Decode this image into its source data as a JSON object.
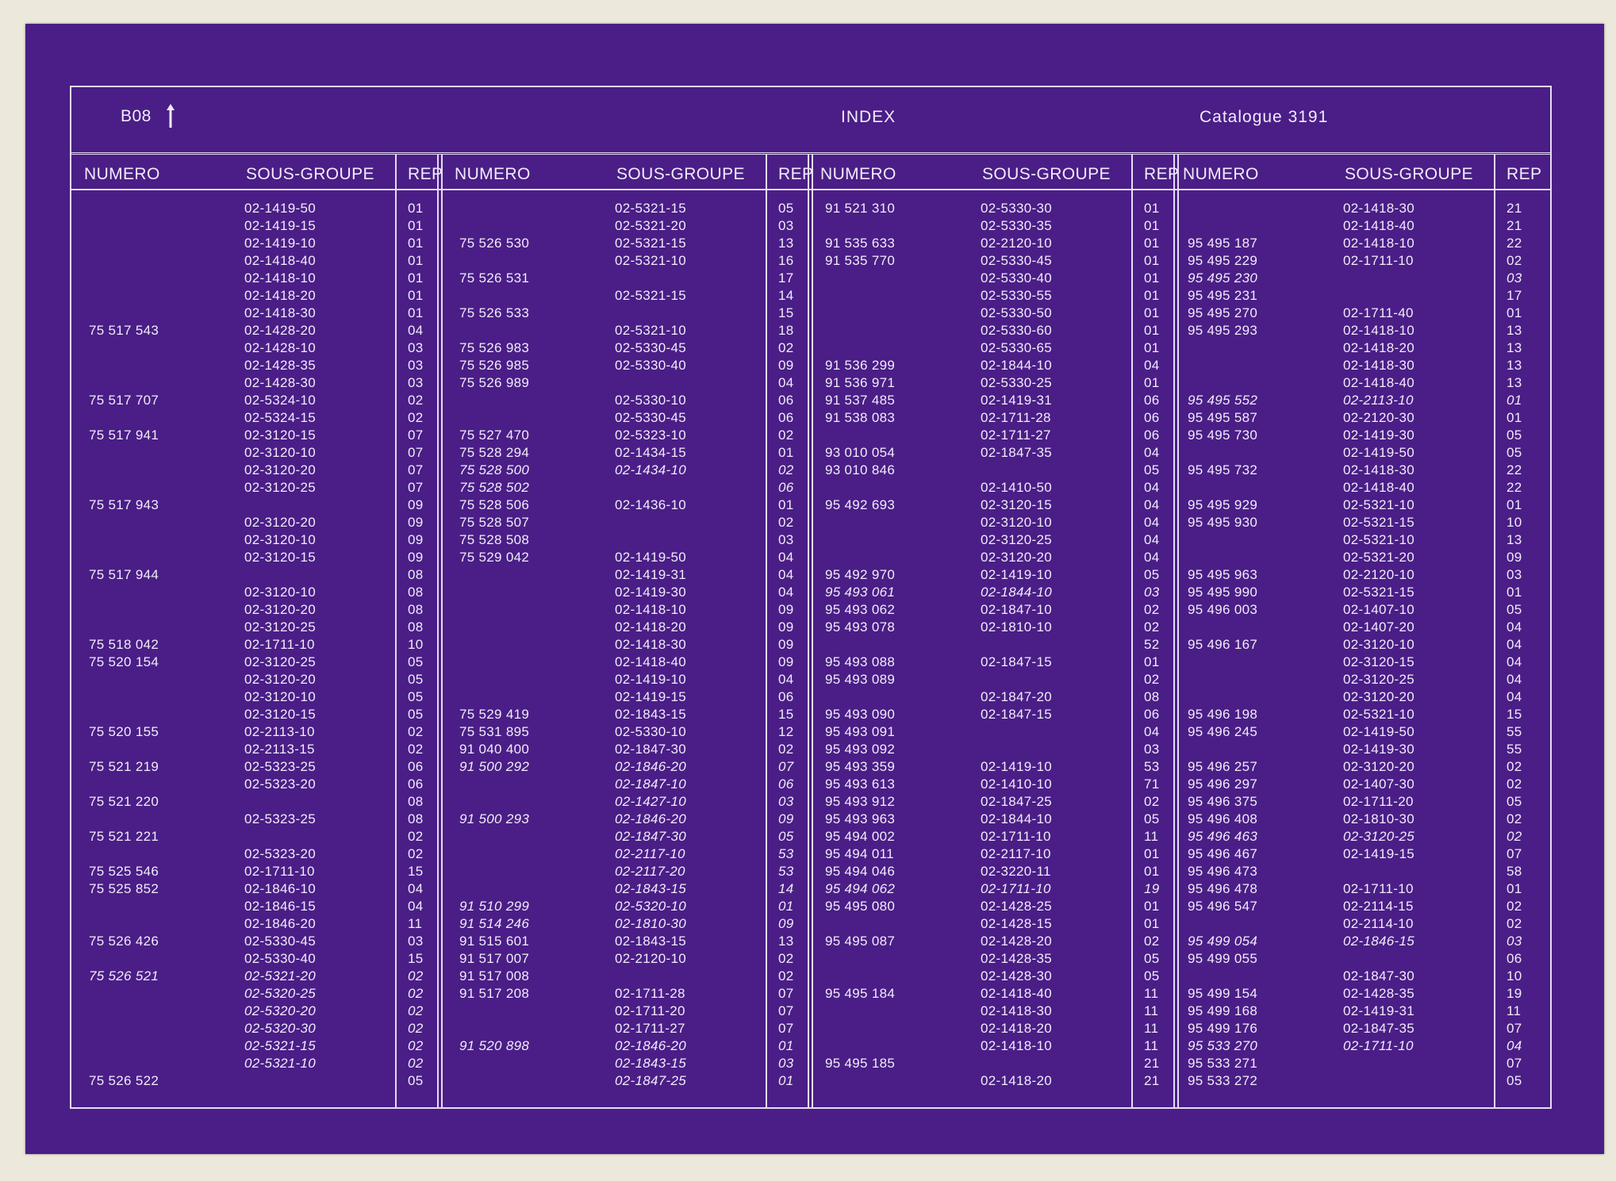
{
  "header": {
    "ref": "B08",
    "title": "INDEX",
    "catalogue": "Catalogue  3191"
  },
  "columns": {
    "numero": "NUMERO",
    "sous_groupe": "SOUS-GROUPE",
    "rep": "REP"
  },
  "table": [
    [
      [
        "",
        "02-1419-50",
        "01"
      ],
      [
        "",
        "02-1419-15",
        "01"
      ],
      [
        "",
        "02-1419-10",
        "01"
      ],
      [
        "",
        "02-1418-40",
        "01"
      ],
      [
        "",
        "02-1418-10",
        "01"
      ],
      [
        "",
        "02-1418-20",
        "01"
      ],
      [
        "",
        "02-1418-30",
        "01"
      ],
      [
        "75 517 543",
        "02-1428-20",
        "04"
      ],
      [
        "",
        "02-1428-10",
        "03"
      ],
      [
        "",
        "02-1428-35",
        "03"
      ],
      [
        "",
        "02-1428-30",
        "03"
      ],
      [
        "75 517 707",
        "02-5324-10",
        "02"
      ],
      [
        "",
        "02-5324-15",
        "02"
      ],
      [
        "75 517 941",
        "02-3120-15",
        "07"
      ],
      [
        "",
        "02-3120-10",
        "07"
      ],
      [
        "",
        "02-3120-20",
        "07"
      ],
      [
        "",
        "02-3120-25",
        "07"
      ],
      [
        "75 517 943",
        "",
        "09"
      ],
      [
        "",
        "02-3120-20",
        "09"
      ],
      [
        "",
        "02-3120-10",
        "09"
      ],
      [
        "",
        "02-3120-15",
        "09"
      ],
      [
        "75 517 944",
        "",
        "08"
      ],
      [
        "",
        "02-3120-10",
        "08"
      ],
      [
        "",
        "02-3120-20",
        "08"
      ],
      [
        "",
        "02-3120-25",
        "08"
      ],
      [
        "75 518 042",
        "02-1711-10",
        "10"
      ],
      [
        "75 520 154",
        "02-3120-25",
        "05"
      ],
      [
        "",
        "02-3120-20",
        "05"
      ],
      [
        "",
        "02-3120-10",
        "05"
      ],
      [
        "",
        "02-3120-15",
        "05"
      ],
      [
        "75 520 155",
        "02-2113-10",
        "02"
      ],
      [
        "",
        "02-2113-15",
        "02"
      ],
      [
        "75 521 219",
        "02-5323-25",
        "06"
      ],
      [
        "",
        "02-5323-20",
        "06"
      ],
      [
        "75 521 220",
        "",
        "08"
      ],
      [
        "",
        "02-5323-25",
        "08"
      ],
      [
        "75 521 221",
        "",
        "02"
      ],
      [
        "",
        "02-5323-20",
        "02"
      ],
      [
        "75 525 546",
        "02-1711-10",
        "15"
      ],
      [
        "75 525 852",
        "02-1846-10",
        "04"
      ],
      [
        "",
        "02-1846-15",
        "04"
      ],
      [
        "",
        "02-1846-20",
        "11"
      ],
      [
        "75 526 426",
        "02-5330-45",
        "03"
      ],
      [
        "",
        "02-5330-40",
        "15"
      ],
      [
        "75 526 521",
        "02-5321-20",
        "02",
        "i"
      ],
      [
        "",
        "02-5320-25",
        "02",
        "i"
      ],
      [
        "",
        "02-5320-20",
        "02",
        "i"
      ],
      [
        "",
        "02-5320-30",
        "02",
        "i"
      ],
      [
        "",
        "02-5321-15",
        "02",
        "i"
      ],
      [
        "",
        "02-5321-10",
        "02",
        "i"
      ],
      [
        "75 526 522",
        "",
        "05"
      ]
    ],
    [
      [
        "",
        "02-5321-15",
        "05"
      ],
      [
        "",
        "02-5321-20",
        "03"
      ],
      [
        "75 526 530",
        "02-5321-15",
        "13"
      ],
      [
        "",
        "02-5321-10",
        "16"
      ],
      [
        "75 526 531",
        "",
        "17"
      ],
      [
        "",
        "02-5321-15",
        "14"
      ],
      [
        "75 526 533",
        "",
        "15"
      ],
      [
        "",
        "02-5321-10",
        "18"
      ],
      [
        "75 526 983",
        "02-5330-45",
        "02"
      ],
      [
        "75 526 985",
        "02-5330-40",
        "09"
      ],
      [
        "75 526 989",
        "",
        "04"
      ],
      [
        "",
        "02-5330-10",
        "06"
      ],
      [
        "",
        "02-5330-45",
        "06"
      ],
      [
        "75 527 470",
        "02-5323-10",
        "02"
      ],
      [
        "75 528 294",
        "02-1434-15",
        "01"
      ],
      [
        "75 528 500",
        "02-1434-10",
        "02",
        "i"
      ],
      [
        "75 528 502",
        "",
        "06",
        "i"
      ],
      [
        "75 528 506",
        "02-1436-10",
        "01"
      ],
      [
        "75 528 507",
        "",
        "02"
      ],
      [
        "75 528 508",
        "",
        "03"
      ],
      [
        "75 529 042",
        "02-1419-50",
        "04"
      ],
      [
        "",
        "02-1419-31",
        "04"
      ],
      [
        "",
        "02-1419-30",
        "04"
      ],
      [
        "",
        "02-1418-10",
        "09"
      ],
      [
        "",
        "02-1418-20",
        "09"
      ],
      [
        "",
        "02-1418-30",
        "09"
      ],
      [
        "",
        "02-1418-40",
        "09"
      ],
      [
        "",
        "02-1419-10",
        "04"
      ],
      [
        "",
        "02-1419-15",
        "06"
      ],
      [
        "75 529 419",
        "02-1843-15",
        "15"
      ],
      [
        "75 531 895",
        "02-5330-10",
        "12"
      ],
      [
        "91 040 400",
        "02-1847-30",
        "02"
      ],
      [
        "91 500 292",
        "02-1846-20",
        "07",
        "i"
      ],
      [
        "",
        "02-1847-10",
        "06",
        "i"
      ],
      [
        "",
        "02-1427-10",
        "03",
        "i"
      ],
      [
        "91 500 293",
        "02-1846-20",
        "09",
        "i"
      ],
      [
        "",
        "02-1847-30",
        "05",
        "i"
      ],
      [
        "",
        "02-2117-10",
        "53",
        "i"
      ],
      [
        "",
        "02-2117-20",
        "53",
        "i"
      ],
      [
        "",
        "02-1843-15",
        "14",
        "i"
      ],
      [
        "91 510 299",
        "02-5320-10",
        "01",
        "i"
      ],
      [
        "91 514 246",
        "02-1810-30",
        "09",
        "i"
      ],
      [
        "91 515 601",
        "02-1843-15",
        "13"
      ],
      [
        "91 517 007",
        "02-2120-10",
        "02"
      ],
      [
        "91 517 008",
        "",
        "02"
      ],
      [
        "91 517 208",
        "02-1711-28",
        "07"
      ],
      [
        "",
        "02-1711-20",
        "07"
      ],
      [
        "",
        "02-1711-27",
        "07"
      ],
      [
        "91 520 898",
        "02-1846-20",
        "01",
        "i"
      ],
      [
        "",
        "02-1843-15",
        "03",
        "i"
      ],
      [
        "",
        "02-1847-25",
        "01",
        "i"
      ]
    ],
    [
      [
        "91 521 310",
        "02-5330-30",
        "01"
      ],
      [
        "",
        "02-5330-35",
        "01"
      ],
      [
        "91 535 633",
        "02-2120-10",
        "01"
      ],
      [
        "91 535 770",
        "02-5330-45",
        "01"
      ],
      [
        "",
        "02-5330-40",
        "01"
      ],
      [
        "",
        "02-5330-55",
        "01"
      ],
      [
        "",
        "02-5330-50",
        "01"
      ],
      [
        "",
        "02-5330-60",
        "01"
      ],
      [
        "",
        "02-5330-65",
        "01"
      ],
      [
        "91 536 299",
        "02-1844-10",
        "04"
      ],
      [
        "91 536 971",
        "02-5330-25",
        "01"
      ],
      [
        "91 537 485",
        "02-1419-31",
        "06"
      ],
      [
        "91 538 083",
        "02-1711-28",
        "06"
      ],
      [
        "",
        "02-1711-27",
        "06"
      ],
      [
        "93 010 054",
        "02-1847-35",
        "04"
      ],
      [
        "93 010 846",
        "",
        "05"
      ],
      [
        "",
        "02-1410-50",
        "04"
      ],
      [
        "95 492 693",
        "02-3120-15",
        "04"
      ],
      [
        "",
        "02-3120-10",
        "04"
      ],
      [
        "",
        "02-3120-25",
        "04"
      ],
      [
        "",
        "02-3120-20",
        "04"
      ],
      [
        "95 492 970",
        "02-1419-10",
        "05"
      ],
      [
        "95 493 061",
        "02-1844-10",
        "03",
        "i"
      ],
      [
        "95 493 062",
        "02-1847-10",
        "02"
      ],
      [
        "95 493 078",
        "02-1810-10",
        "02"
      ],
      [
        "",
        "",
        "52"
      ],
      [
        "95 493 088",
        "02-1847-15",
        "01"
      ],
      [
        "95 493 089",
        "",
        "02"
      ],
      [
        "",
        "02-1847-20",
        "08"
      ],
      [
        "95 493 090",
        "02-1847-15",
        "06"
      ],
      [
        "95 493 091",
        "",
        "04"
      ],
      [
        "95 493 092",
        "",
        "03"
      ],
      [
        "95 493 359",
        "02-1419-10",
        "53"
      ],
      [
        "95 493 613",
        "02-1410-10",
        "71"
      ],
      [
        "95 493 912",
        "02-1847-25",
        "02"
      ],
      [
        "95 493 963",
        "02-1844-10",
        "05"
      ],
      [
        "95 494 002",
        "02-1711-10",
        "11"
      ],
      [
        "95 494 011",
        "02-2117-10",
        "01"
      ],
      [
        "95 494 046",
        "02-3220-11",
        "01"
      ],
      [
        "95 494 062",
        "02-1711-10",
        "19",
        "i"
      ],
      [
        "95 495 080",
        "02-1428-25",
        "01"
      ],
      [
        "",
        "02-1428-15",
        "01"
      ],
      [
        "95 495 087",
        "02-1428-20",
        "02"
      ],
      [
        "",
        "02-1428-35",
        "05"
      ],
      [
        "",
        "02-1428-30",
        "05"
      ],
      [
        "95 495 184",
        "02-1418-40",
        "11"
      ],
      [
        "",
        "02-1418-30",
        "11"
      ],
      [
        "",
        "02-1418-20",
        "11"
      ],
      [
        "",
        "02-1418-10",
        "11"
      ],
      [
        "95 495 185",
        "",
        "21"
      ],
      [
        "",
        "02-1418-20",
        "21"
      ]
    ],
    [
      [
        "",
        "02-1418-30",
        "21"
      ],
      [
        "",
        "02-1418-40",
        "21"
      ],
      [
        "95 495 187",
        "02-1418-10",
        "22"
      ],
      [
        "95 495 229",
        "02-1711-10",
        "02"
      ],
      [
        "95 495 230",
        "",
        "03",
        "i"
      ],
      [
        "95 495 231",
        "",
        "17"
      ],
      [
        "95 495 270",
        "02-1711-40",
        "01"
      ],
      [
        "95 495 293",
        "02-1418-10",
        "13"
      ],
      [
        "",
        "02-1418-20",
        "13"
      ],
      [
        "",
        "02-1418-30",
        "13"
      ],
      [
        "",
        "02-1418-40",
        "13"
      ],
      [
        "95 495 552",
        "02-2113-10",
        "01",
        "i"
      ],
      [
        "95 495 587",
        "02-2120-30",
        "01"
      ],
      [
        "95 495 730",
        "02-1419-30",
        "05"
      ],
      [
        "",
        "02-1419-50",
        "05"
      ],
      [
        "95 495 732",
        "02-1418-30",
        "22"
      ],
      [
        "",
        "02-1418-40",
        "22"
      ],
      [
        "95 495 929",
        "02-5321-10",
        "01"
      ],
      [
        "95 495 930",
        "02-5321-15",
        "10"
      ],
      [
        "",
        "02-5321-10",
        "13"
      ],
      [
        "",
        "02-5321-20",
        "09"
      ],
      [
        "95 495 963",
        "02-2120-10",
        "03"
      ],
      [
        "95 495 990",
        "02-5321-15",
        "01"
      ],
      [
        "95 496 003",
        "02-1407-10",
        "05"
      ],
      [
        "",
        "02-1407-20",
        "04"
      ],
      [
        "95 496 167",
        "02-3120-10",
        "04"
      ],
      [
        "",
        "02-3120-15",
        "04"
      ],
      [
        "",
        "02-3120-25",
        "04"
      ],
      [
        "",
        "02-3120-20",
        "04"
      ],
      [
        "95 496 198",
        "02-5321-10",
        "15"
      ],
      [
        "95 496 245",
        "02-1419-50",
        "55"
      ],
      [
        "",
        "02-1419-30",
        "55"
      ],
      [
        "95 496 257",
        "02-3120-20",
        "02"
      ],
      [
        "95 496 297",
        "02-1407-30",
        "02"
      ],
      [
        "95 496 375",
        "02-1711-20",
        "05"
      ],
      [
        "95 496 408",
        "02-1810-30",
        "02"
      ],
      [
        "95 496 463",
        "02-3120-25",
        "02",
        "i"
      ],
      [
        "95 496 467",
        "02-1419-15",
        "07"
      ],
      [
        "95 496 473",
        "",
        "58"
      ],
      [
        "95 496 478",
        "02-1711-10",
        "01"
      ],
      [
        "95 496 547",
        "02-2114-15",
        "02"
      ],
      [
        "",
        "02-2114-10",
        "02"
      ],
      [
        "95 499 054",
        "02-1846-15",
        "03",
        "i"
      ],
      [
        "95 499 055",
        "",
        "06"
      ],
      [
        "",
        "02-1847-30",
        "10"
      ],
      [
        "95 499 154",
        "02-1428-35",
        "19"
      ],
      [
        "95 499 168",
        "02-1419-31",
        "11"
      ],
      [
        "95 499 176",
        "02-1847-35",
        "07"
      ],
      [
        "95 533 270",
        "02-1711-10",
        "04",
        "i"
      ],
      [
        "95 533 271",
        "",
        "07"
      ],
      [
        "95 533 272",
        "",
        "05"
      ]
    ]
  ]
}
